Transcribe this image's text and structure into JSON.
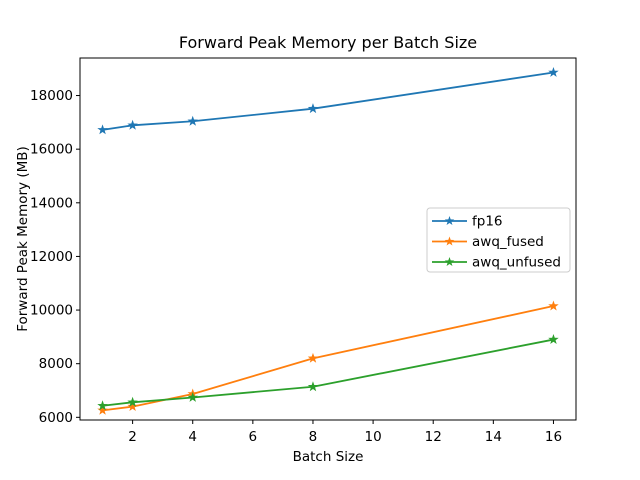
{
  "chart_data": {
    "type": "line",
    "title": "Forward Peak Memory per Batch Size",
    "xlabel": "Batch Size",
    "ylabel": "Forward Peak Memory (MB)",
    "x": [
      1,
      2,
      4,
      8,
      16
    ],
    "series": [
      {
        "name": "fp16",
        "color": "#1f77b4",
        "marker": "star",
        "values": [
          16720,
          16890,
          17040,
          17510,
          18860
        ]
      },
      {
        "name": "awq_fused",
        "color": "#ff7f0e",
        "marker": "star",
        "values": [
          6260,
          6400,
          6870,
          8200,
          10150
        ]
      },
      {
        "name": "awq_unfused",
        "color": "#2ca02c",
        "marker": "star",
        "values": [
          6430,
          6560,
          6740,
          7140,
          8900
        ]
      }
    ],
    "xticks": [
      2,
      4,
      6,
      8,
      10,
      12,
      14,
      16
    ],
    "yticks": [
      6000,
      8000,
      10000,
      12000,
      14000,
      16000,
      18000
    ],
    "xlim": [
      0.25,
      16.75
    ],
    "ylim": [
      5900,
      19400
    ],
    "grid": false,
    "legend": {
      "position": "right-center",
      "entries": [
        "fp16",
        "awq_fused",
        "awq_unfused"
      ],
      "border_color": "#cccccc",
      "background": "#ffffff"
    },
    "axes_color": "#000000",
    "background": "#ffffff"
  }
}
